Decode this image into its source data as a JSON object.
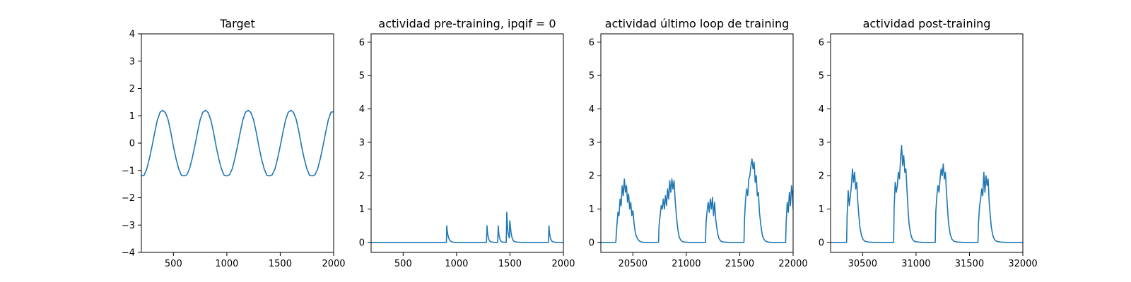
{
  "colors": {
    "line": "#1f77b4",
    "axes": "#000000",
    "background": "#ffffff"
  },
  "chart_data": [
    {
      "type": "line",
      "title": "Target",
      "xlim": [
        200,
        2000
      ],
      "ylim": [
        -4,
        4
      ],
      "xticks": [
        500,
        1000,
        1500,
        2000
      ],
      "yticks": [
        -4,
        -3,
        -2,
        -1,
        0,
        1,
        2,
        3,
        4
      ],
      "grid": false,
      "series": [
        {
          "x": [
            200,
            225,
            250,
            275,
            300,
            325,
            350,
            375,
            400,
            425,
            450,
            475,
            500,
            525,
            550,
            575,
            600,
            625,
            650,
            675,
            700,
            725,
            750,
            775,
            800,
            825,
            850,
            875,
            900,
            925,
            950,
            975,
            1000,
            1025,
            1050,
            1075,
            1100,
            1125,
            1150,
            1175,
            1200,
            1225,
            1250,
            1275,
            1300,
            1325,
            1350,
            1375,
            1400,
            1425,
            1450,
            1475,
            1500,
            1525,
            1550,
            1575,
            1600,
            1625,
            1650,
            1675,
            1700,
            1725,
            1750,
            1775,
            1800,
            1825,
            1850,
            1875,
            1900,
            1925,
            1950,
            1975,
            2000
          ],
          "y": [
            -1.2,
            -1.18,
            -0.95,
            -0.57,
            -0.11,
            0.39,
            0.85,
            1.13,
            1.2,
            1.12,
            0.86,
            0.41,
            -0.12,
            -0.58,
            -0.95,
            -1.18,
            -1.2,
            -1.16,
            -0.95,
            -0.57,
            -0.11,
            0.39,
            0.85,
            1.13,
            1.2,
            1.12,
            0.86,
            0.41,
            -0.12,
            -0.58,
            -0.95,
            -1.18,
            -1.2,
            -1.16,
            -0.95,
            -0.57,
            -0.11,
            0.39,
            0.85,
            1.13,
            1.2,
            1.12,
            0.86,
            0.41,
            -0.12,
            -0.58,
            -0.95,
            -1.18,
            -1.2,
            -1.16,
            -0.95,
            -0.57,
            -0.11,
            0.39,
            0.85,
            1.13,
            1.2,
            1.12,
            0.86,
            0.41,
            -0.12,
            -0.58,
            -0.95,
            -1.18,
            -1.2,
            -1.16,
            -0.95,
            -0.57,
            -0.11,
            0.39,
            0.85,
            1.13,
            1.15
          ]
        }
      ]
    },
    {
      "type": "line",
      "title": "actividad pre-training, ipqif = 0",
      "xlim": [
        200,
        2000
      ],
      "ylim": [
        -0.3,
        6.25
      ],
      "xticks": [
        500,
        1000,
        1500,
        2000
      ],
      "yticks": [
        0,
        1,
        2,
        3,
        4,
        5,
        6
      ],
      "grid": false,
      "series": [
        {
          "x": [
            200,
            905,
            908,
            912,
            918,
            925,
            935,
            950,
            980,
            1280,
            1285,
            1288,
            1292,
            1298,
            1305,
            1315,
            1330,
            1360,
            1385,
            1390,
            1393,
            1397,
            1403,
            1410,
            1420,
            1435,
            1465,
            1470,
            1473,
            1477,
            1482,
            1488,
            1494,
            1498,
            1502,
            1506,
            1510,
            1515,
            1520,
            1528,
            1535,
            1545,
            1560,
            1600,
            1860,
            1865,
            1868,
            1872,
            1878,
            1885,
            1895,
            1910,
            1940,
            2000
          ],
          "y": [
            0,
            0,
            0.5,
            0.36,
            0.24,
            0.14,
            0.07,
            0.02,
            0,
            0,
            0.5,
            0.36,
            0.24,
            0.14,
            0.07,
            0.02,
            0.01,
            0,
            0,
            0.5,
            0.36,
            0.22,
            0.13,
            0.06,
            0.02,
            0.01,
            0,
            0.9,
            0.7,
            0.45,
            0.3,
            0.2,
            0.13,
            0.65,
            0.55,
            0.42,
            0.3,
            0.2,
            0.14,
            0.08,
            0.04,
            0.02,
            0.01,
            0,
            0,
            0.5,
            0.36,
            0.24,
            0.14,
            0.07,
            0.03,
            0.01,
            0,
            0
          ]
        }
      ]
    },
    {
      "type": "line",
      "title": "actividad último loop de training",
      "xlim": [
        20200,
        22000
      ],
      "ylim": [
        -0.3,
        6.25
      ],
      "xticks": [
        20500,
        21000,
        21500,
        22000
      ],
      "yticks": [
        0,
        1,
        2,
        3,
        4,
        5,
        6
      ],
      "grid": false,
      "series": [
        {
          "x": [
            20200,
            20340,
            20350,
            20360,
            20370,
            20380,
            20390,
            20400,
            20410,
            20420,
            20430,
            20440,
            20450,
            20460,
            20470,
            20480,
            20490,
            20500,
            20510,
            20520,
            20530,
            20545,
            20560,
            20580,
            20610,
            20650,
            20740,
            20745,
            20755,
            20765,
            20775,
            20785,
            20795,
            20805,
            20815,
            20825,
            20835,
            20845,
            20855,
            20865,
            20875,
            20885,
            20895,
            20905,
            20915,
            20925,
            20935,
            20950,
            20965,
            20985,
            21020,
            21060,
            21180,
            21185,
            21195,
            21205,
            21215,
            21225,
            21235,
            21245,
            21255,
            21265,
            21275,
            21285,
            21295,
            21305,
            21320,
            21335,
            21355,
            21390,
            21440,
            21540,
            21545,
            21555,
            21565,
            21575,
            21585,
            21595,
            21605,
            21615,
            21625,
            21635,
            21645,
            21655,
            21665,
            21675,
            21685,
            21695,
            21705,
            21715,
            21730,
            21745,
            21765,
            21800,
            21850,
            21930,
            21935,
            21945,
            21955,
            21965,
            21975,
            21985,
            21995,
            22000
          ],
          "y": [
            0,
            0,
            0.5,
            0.9,
            0.8,
            1.3,
            1.1,
            1.7,
            1.4,
            1.9,
            1.5,
            1.7,
            1.2,
            1.45,
            1.0,
            1.2,
            0.8,
            0.95,
            0.6,
            0.35,
            0.2,
            0.1,
            0.04,
            0.01,
            0,
            0,
            0,
            0.5,
            0.8,
            1.1,
            1.0,
            1.3,
            1.0,
            1.4,
            1.1,
            1.6,
            1.3,
            1.85,
            1.5,
            1.9,
            1.6,
            1.85,
            1.3,
            0.9,
            0.55,
            0.3,
            0.15,
            0.06,
            0.02,
            0.01,
            0,
            0,
            0,
            0.6,
            0.95,
            1.2,
            0.9,
            1.3,
            1.0,
            1.35,
            0.8,
            1.2,
            0.7,
            0.45,
            0.25,
            0.12,
            0.05,
            0.02,
            0.01,
            0,
            0,
            0,
            0.7,
            1.3,
            1.6,
            1.4,
            1.9,
            2.0,
            2.3,
            2.5,
            2.2,
            2.4,
            1.8,
            2.0,
            1.4,
            1.5,
            0.9,
            0.6,
            0.35,
            0.18,
            0.08,
            0.03,
            0.01,
            0,
            0,
            0,
            0.6,
            1.2,
            0.9,
            1.5,
            1.1,
            1.7,
            1.4,
            1.0
          ]
        }
      ]
    },
    {
      "type": "line",
      "title": "actividad post-training",
      "xlim": [
        30200,
        32000
      ],
      "ylim": [
        -0.3,
        6.25
      ],
      "xticks": [
        30500,
        31000,
        31500,
        32000
      ],
      "yticks": [
        0,
        1,
        2,
        3,
        4,
        5,
        6
      ],
      "grid": false,
      "series": [
        {
          "x": [
            30200,
            30350,
            30355,
            30365,
            30375,
            30385,
            30395,
            30405,
            30415,
            30425,
            30435,
            30445,
            30455,
            30465,
            30475,
            30490,
            30505,
            30525,
            30555,
            30600,
            30790,
            30795,
            30805,
            30815,
            30825,
            30835,
            30845,
            30855,
            30865,
            30875,
            30885,
            30895,
            30905,
            30915,
            30925,
            30935,
            30950,
            30965,
            30985,
            31020,
            31060,
            31180,
            31185,
            31195,
            31205,
            31215,
            31225,
            31235,
            31245,
            31255,
            31265,
            31275,
            31285,
            31295,
            31305,
            31320,
            31335,
            31355,
            31390,
            31440,
            31580,
            31585,
            31595,
            31605,
            31615,
            31625,
            31635,
            31645,
            31655,
            31665,
            31675,
            31685,
            31695,
            31705,
            31720,
            31735,
            31755,
            31790,
            31840,
            32000
          ],
          "y": [
            0,
            0,
            0.8,
            1.55,
            1.1,
            1.4,
            1.7,
            2.2,
            1.8,
            2.1,
            1.6,
            1.8,
            1.2,
            0.8,
            0.45,
            0.2,
            0.08,
            0.03,
            0.01,
            0,
            0,
            1.0,
            1.8,
            1.5,
            1.7,
            2.1,
            1.9,
            2.5,
            2.9,
            2.3,
            2.6,
            2.1,
            2.2,
            1.6,
            1.0,
            0.55,
            0.25,
            0.1,
            0.03,
            0.01,
            0,
            0,
            0.9,
            1.4,
            1.7,
            1.5,
            1.9,
            2.2,
            2.0,
            2.35,
            1.9,
            2.1,
            1.5,
            1.0,
            0.55,
            0.25,
            0.1,
            0.03,
            0.01,
            0,
            0,
            0.6,
            1.1,
            1.3,
            1.6,
            1.4,
            2.1,
            1.5,
            2.0,
            1.7,
            1.9,
            1.2,
            0.8,
            0.45,
            0.2,
            0.08,
            0.03,
            0.01,
            0,
            0
          ]
        }
      ]
    }
  ]
}
